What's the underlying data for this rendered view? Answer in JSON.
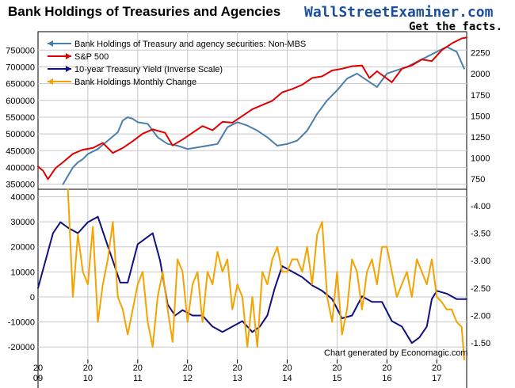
{
  "header": {
    "title": "Bank Holdings of Treasuries and Agencies",
    "brand": "WallStreetExaminer.com",
    "tagline": "Get the facts."
  },
  "footer_note": "Chart generated by Economagic.com",
  "colors": {
    "bank_holdings": "#4a7fab",
    "sp500": "#e00000",
    "yield": "#101080",
    "monthly_change": "#f5a300"
  },
  "chart_data": [
    {
      "type": "line",
      "panel": "top",
      "x_ticks": [
        {
          "top": "20",
          "bottom": "09",
          "x": 2009.0
        },
        {
          "top": "20",
          "bottom": "10",
          "x": 2010.0
        },
        {
          "top": "20",
          "bottom": "11",
          "x": 2011.0
        },
        {
          "top": "20",
          "bottom": "12",
          "x": 2012.0
        },
        {
          "top": "20",
          "bottom": "13",
          "x": 2013.0
        },
        {
          "top": "20",
          "bottom": "14",
          "x": 2014.0
        },
        {
          "top": "20",
          "bottom": "15",
          "x": 2015.0
        },
        {
          "top": "20",
          "bottom": "16",
          "x": 2016.0
        },
        {
          "top": "20",
          "bottom": "17",
          "x": 2017.0
        }
      ],
      "xlim": [
        2009.0,
        2017.6
      ],
      "left_axis": {
        "ticks": [
          350000,
          400000,
          450000,
          500000,
          550000,
          600000,
          650000,
          700000,
          750000
        ],
        "range": [
          335000,
          805000
        ]
      },
      "right_axis": {
        "ticks": [
          750,
          1000,
          1250,
          1500,
          1750,
          2000,
          2250
        ],
        "range": [
          630,
          2500
        ]
      },
      "legend": [
        {
          "name": "Bank Holdings of Treasury and agency securities: Non-MBS",
          "color": "#4a7fab"
        },
        {
          "name": "S&P 500",
          "color": "#e00000"
        },
        {
          "name": "10-year Treasury Yield (Inverse Scale)",
          "color": "#101080"
        },
        {
          "name": "Bank Holdings Monthly Change",
          "color": "#f5a300"
        }
      ],
      "series": [
        {
          "name": "Bank Holdings of Treasury and agency securities: Non-MBS",
          "axis": "left",
          "color": "#4a7fab",
          "x": [
            2009.5,
            2009.6,
            2009.7,
            2009.8,
            2009.9,
            2010.0,
            2010.2,
            2010.4,
            2010.6,
            2010.7,
            2010.8,
            2010.9,
            2011.0,
            2011.2,
            2011.4,
            2011.6,
            2011.8,
            2012.0,
            2012.2,
            2012.4,
            2012.6,
            2012.8,
            2013.0,
            2013.2,
            2013.4,
            2013.6,
            2013.8,
            2014.0,
            2014.2,
            2014.4,
            2014.6,
            2014.8,
            2015.0,
            2015.2,
            2015.4,
            2015.6,
            2015.8,
            2016.0,
            2016.2,
            2016.4,
            2016.6,
            2016.8,
            2017.0,
            2017.2,
            2017.4,
            2017.55
          ],
          "values": [
            350000,
            375000,
            400000,
            415000,
            425000,
            440000,
            455000,
            480000,
            505000,
            540000,
            550000,
            545000,
            535000,
            530000,
            490000,
            470000,
            465000,
            455000,
            460000,
            465000,
            470000,
            520000,
            535000,
            525000,
            510000,
            490000,
            465000,
            470000,
            480000,
            510000,
            560000,
            600000,
            630000,
            665000,
            680000,
            660000,
            640000,
            680000,
            690000,
            700000,
            715000,
            730000,
            745000,
            760000,
            745000,
            695000
          ]
        },
        {
          "name": "S&P 500",
          "axis": "right",
          "color": "#e00000",
          "x": [
            2009.0,
            2009.1,
            2009.2,
            2009.35,
            2009.5,
            2009.7,
            2009.9,
            2010.1,
            2010.3,
            2010.5,
            2010.7,
            2010.9,
            2011.1,
            2011.3,
            2011.55,
            2011.7,
            2011.9,
            2012.1,
            2012.3,
            2012.5,
            2012.7,
            2012.9,
            2013.1,
            2013.3,
            2013.5,
            2013.7,
            2013.9,
            2014.1,
            2014.3,
            2014.5,
            2014.7,
            2014.9,
            2015.1,
            2015.3,
            2015.5,
            2015.65,
            2015.8,
            2016.1,
            2016.3,
            2016.5,
            2016.7,
            2016.9,
            2017.1,
            2017.3,
            2017.5,
            2017.6
          ],
          "values": [
            900,
            850,
            750,
            880,
            950,
            1050,
            1100,
            1120,
            1180,
            1060,
            1120,
            1200,
            1290,
            1340,
            1300,
            1150,
            1220,
            1300,
            1380,
            1330,
            1430,
            1420,
            1500,
            1580,
            1630,
            1680,
            1780,
            1820,
            1870,
            1950,
            1970,
            2040,
            2060,
            2090,
            2100,
            1950,
            2030,
            1900,
            2060,
            2100,
            2170,
            2150,
            2280,
            2360,
            2420,
            2430
          ]
        }
      ]
    },
    {
      "type": "line",
      "panel": "bottom",
      "xlim": [
        2009.0,
        2017.6
      ],
      "left_axis": {
        "ticks": [
          -20000,
          -10000,
          0,
          10000,
          20000,
          30000,
          40000
        ],
        "range": [
          -25000,
          43000
        ]
      },
      "right_axis": {
        "ticks": [
          -1.5,
          -2.0,
          -2.5,
          -3.0,
          -3.5,
          -4.0
        ],
        "range": [
          -1.2,
          -4.3
        ],
        "inverse_scale": true
      },
      "series": [
        {
          "name": "10-year Treasury Yield (Inverse Scale)",
          "axis": "right",
          "color": "#101080",
          "x": [
            2009.0,
            2009.15,
            2009.3,
            2009.45,
            2009.6,
            2009.8,
            2010.0,
            2010.2,
            2010.35,
            2010.5,
            2010.65,
            2010.8,
            2011.0,
            2011.15,
            2011.3,
            2011.45,
            2011.6,
            2011.75,
            2011.9,
            2012.1,
            2012.3,
            2012.5,
            2012.7,
            2012.9,
            2013.1,
            2013.3,
            2013.45,
            2013.6,
            2013.75,
            2013.9,
            2014.1,
            2014.3,
            2014.5,
            2014.7,
            2014.9,
            2015.1,
            2015.3,
            2015.5,
            2015.7,
            2015.9,
            2016.1,
            2016.3,
            2016.5,
            2016.65,
            2016.8,
            2016.9,
            2017.0,
            2017.2,
            2017.4,
            2017.6
          ],
          "values": [
            -2.5,
            -3.0,
            -3.5,
            -3.7,
            -3.6,
            -3.5,
            -3.7,
            -3.8,
            -3.4,
            -3.0,
            -2.6,
            -2.6,
            -3.3,
            -3.4,
            -3.5,
            -3.0,
            -2.2,
            -2.0,
            -2.1,
            -2.0,
            -2.0,
            -1.8,
            -1.7,
            -1.8,
            -1.9,
            -1.7,
            -1.8,
            -2.0,
            -2.5,
            -2.9,
            -2.8,
            -2.7,
            -2.55,
            -2.45,
            -2.3,
            -1.95,
            -2.0,
            -2.35,
            -2.25,
            -2.25,
            -1.9,
            -1.8,
            -1.5,
            -1.6,
            -1.8,
            -2.3,
            -2.45,
            -2.4,
            -2.3,
            -2.3
          ]
        },
        {
          "name": "Bank Holdings Monthly Change",
          "axis": "left",
          "color": "#f5a300",
          "x": [
            2009.6,
            2009.7,
            2009.8,
            2009.9,
            2010.0,
            2010.1,
            2010.2,
            2010.3,
            2010.4,
            2010.5,
            2010.6,
            2010.7,
            2010.8,
            2010.9,
            2011.0,
            2011.1,
            2011.2,
            2011.3,
            2011.4,
            2011.5,
            2011.6,
            2011.7,
            2011.8,
            2011.9,
            2012.0,
            2012.1,
            2012.2,
            2012.3,
            2012.4,
            2012.5,
            2012.6,
            2012.7,
            2012.8,
            2012.9,
            2013.0,
            2013.1,
            2013.2,
            2013.3,
            2013.4,
            2013.5,
            2013.6,
            2013.7,
            2013.8,
            2013.9,
            2014.0,
            2014.1,
            2014.2,
            2014.3,
            2014.4,
            2014.5,
            2014.6,
            2014.7,
            2014.8,
            2014.9,
            2015.0,
            2015.1,
            2015.2,
            2015.3,
            2015.4,
            2015.5,
            2015.6,
            2015.7,
            2015.8,
            2015.9,
            2016.0,
            2016.1,
            2016.2,
            2016.3,
            2016.4,
            2016.5,
            2016.6,
            2016.7,
            2016.8,
            2016.9,
            2017.0,
            2017.1,
            2017.2,
            2017.3,
            2017.4,
            2017.5,
            2017.55
          ],
          "values": [
            43000,
            0,
            25000,
            10000,
            5000,
            28000,
            -10000,
            5000,
            15000,
            30000,
            0,
            -5000,
            -15000,
            -5000,
            5000,
            10000,
            -10000,
            -20000,
            0,
            10000,
            -5000,
            -18000,
            15000,
            10000,
            -10000,
            5000,
            10000,
            -10000,
            10000,
            5000,
            18000,
            10000,
            15000,
            -5000,
            5000,
            0,
            -20000,
            0,
            -20000,
            10000,
            5000,
            15000,
            20000,
            10000,
            10000,
            15000,
            15000,
            10000,
            20000,
            5000,
            25000,
            30000,
            0,
            -10000,
            10000,
            -15000,
            -5000,
            15000,
            10000,
            -5000,
            10000,
            15000,
            5000,
            20000,
            20000,
            10000,
            0,
            5000,
            10000,
            0,
            15000,
            10000,
            5000,
            15000,
            0,
            -2000,
            -5000,
            -5000,
            -10000,
            -12000,
            -25000
          ]
        }
      ]
    }
  ]
}
